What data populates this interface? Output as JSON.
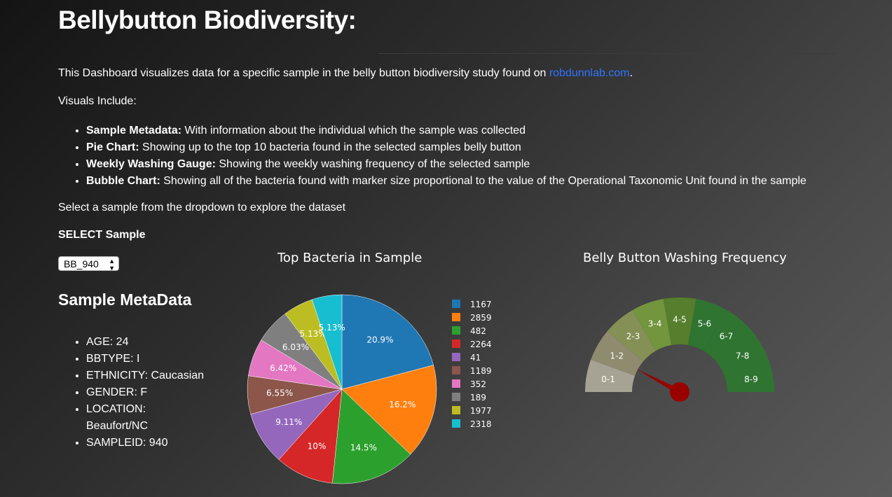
{
  "header": {
    "title": "Bellybutton Biodiversity:"
  },
  "intro": {
    "text_before": "This Dashboard visualizes data for a specific sample in the belly button biodiversity study found on ",
    "link_text": "robdunnlab.com",
    "text_after": "."
  },
  "visuals_intro": "Visuals Include:",
  "visuals": [
    {
      "label": "Sample Metadata:",
      "text": " With information about the individual which the sample was collected"
    },
    {
      "label": "Pie Chart:",
      "text": " Showing up to the top 10 bacteria found in the selected samples belly button"
    },
    {
      "label": "Weekly Washing Gauge:",
      "text": " Showing the weekly washing frequency of the selected sample"
    },
    {
      "label": "Bubble Chart:",
      "text": " Showing all of the bacteria found with marker size proportional to the value of the Operational Taxonomic Unit found in the sample"
    }
  ],
  "instructions": "Select a sample from the dropdown to explore the dataset",
  "select": {
    "label": "SELECT Sample",
    "value": "BB_940",
    "arrows": "▲▼"
  },
  "metadata": {
    "heading": "Sample MetaData",
    "items": [
      "AGE: 24",
      "BBTYPE: I",
      "ETHNICITY: Caucasian",
      "GENDER: F",
      "LOCATION: Beaufort/NC",
      "SAMPLEID: 940"
    ]
  },
  "chart_data": [
    {
      "type": "pie",
      "title": "Top Bacteria in Sample",
      "labels": [
        "1167",
        "2859",
        "482",
        "2264",
        "41",
        "1189",
        "352",
        "189",
        "1977",
        "2318"
      ],
      "percents": [
        20.9,
        16.2,
        14.5,
        10.0,
        9.11,
        6.55,
        6.42,
        6.03,
        5.13,
        5.13
      ],
      "slice_labels": [
        "20.9%",
        "16.2%",
        "14.5%",
        "10%",
        "9.11%",
        "6.55%",
        "6.42%",
        "6.03%",
        "5.13%",
        "5.13%"
      ],
      "colors": [
        "#1f77b4",
        "#ff7f0e",
        "#2ca02c",
        "#d62728",
        "#9467bd",
        "#8c564b",
        "#e377c2",
        "#7f7f7f",
        "#bcbd22",
        "#17becf"
      ],
      "legend_position": "right"
    },
    {
      "type": "gauge",
      "title": "Belly Button Washing Frequency",
      "bands": [
        "0-1",
        "1-2",
        "2-3",
        "3-4",
        "4-5",
        "5-6",
        "6-7",
        "7-8",
        "8-9"
      ],
      "band_colors": [
        "#a6a294",
        "#8e8b6f",
        "#859057",
        "#72953d",
        "#567e2c",
        "#2f7431",
        "#2f7431",
        "#2f7431",
        "#2f7431"
      ],
      "value": 1.4,
      "needle_color": "#990000"
    }
  ]
}
